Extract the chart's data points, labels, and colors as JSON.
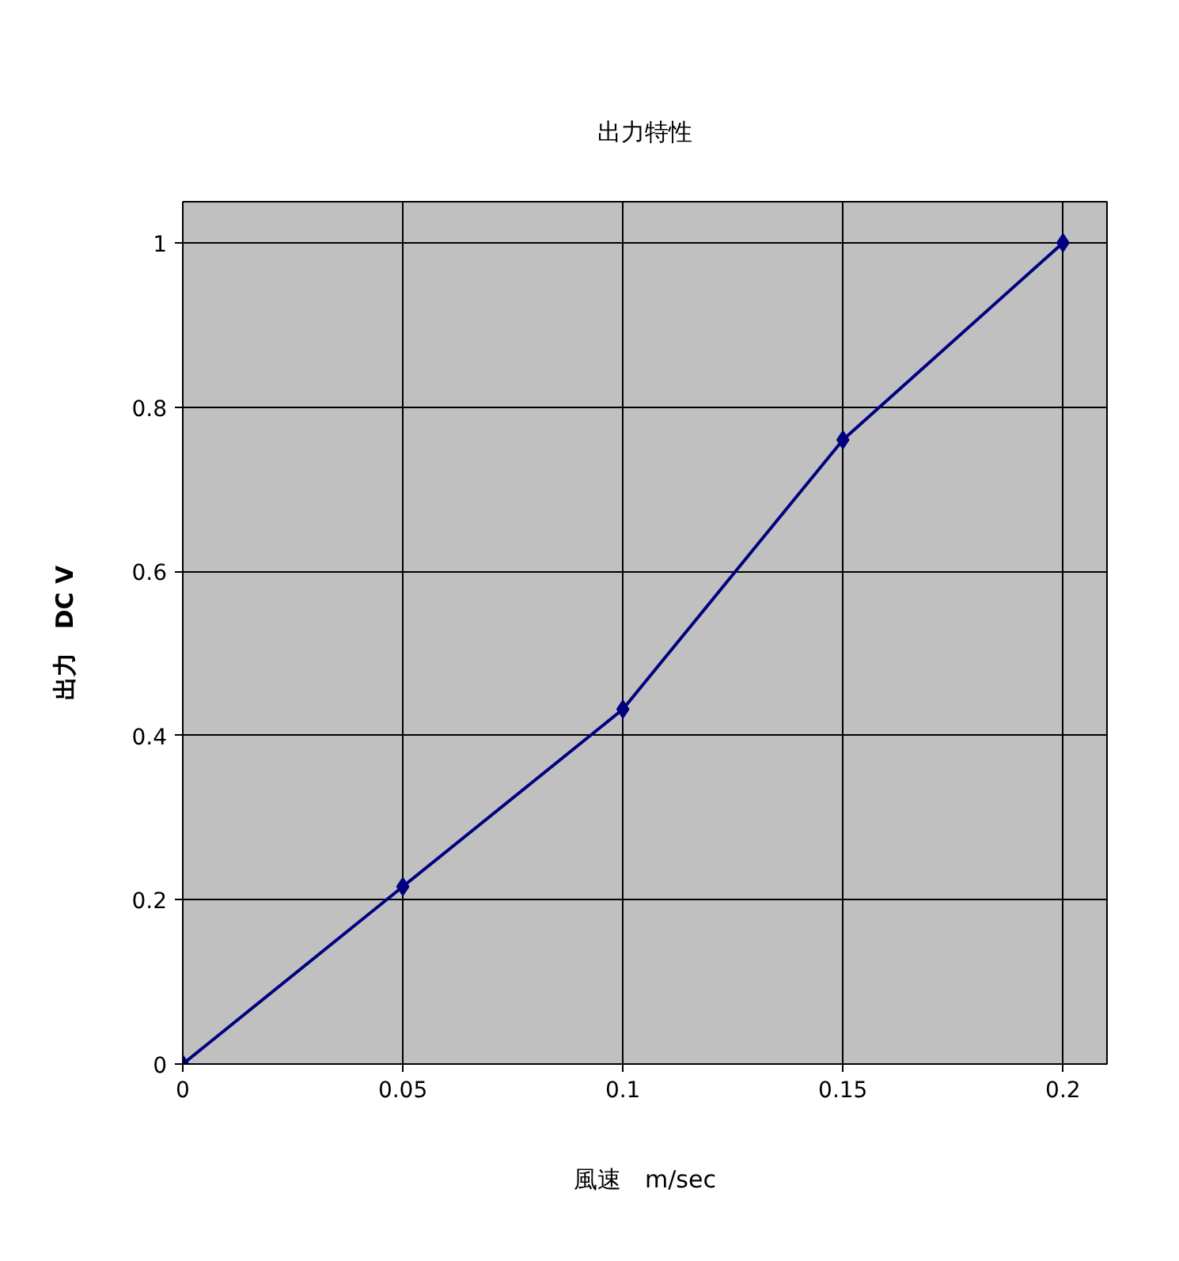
{
  "chart_data": {
    "type": "line",
    "title": "出力特性",
    "xlabel": "風速　m/sec",
    "ylabel": "出力　DC V",
    "x": [
      0,
      0.05,
      0.1,
      0.15,
      0.2
    ],
    "series": [
      {
        "color": "#000080",
        "values": [
          0,
          0.216,
          0.432,
          0.76,
          1
        ]
      }
    ],
    "xlim": [
      0,
      0.21
    ],
    "xticks": [
      0,
      0.05,
      0.1,
      0.15,
      0.2
    ],
    "ylim": [
      0,
      1.05
    ],
    "yticks": [
      0,
      0.2,
      0.4,
      0.6,
      0.8,
      1
    ],
    "grid": true,
    "marker": "diamond",
    "line_style": "solid"
  }
}
